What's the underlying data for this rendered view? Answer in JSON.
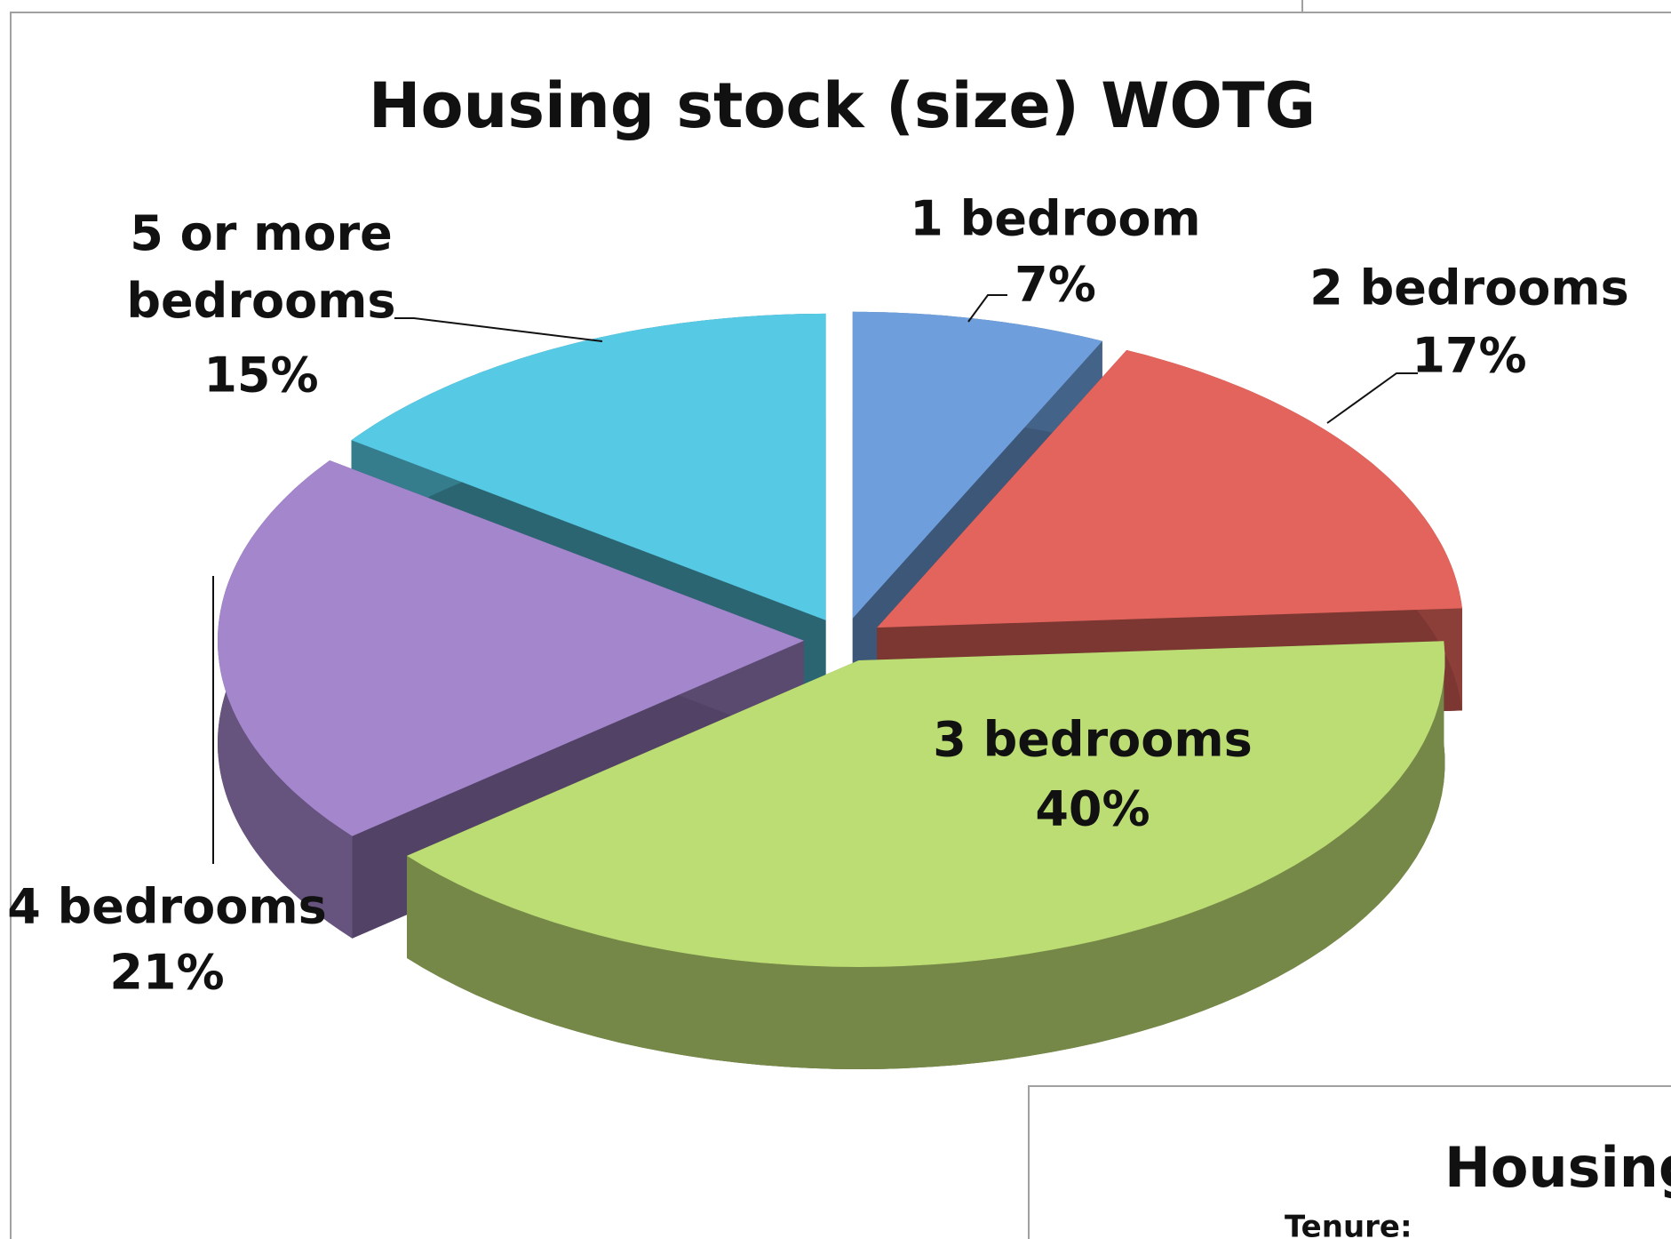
{
  "chart_data": {
    "type": "pie",
    "title": "Housing stock (size) WOTG",
    "categories": [
      "1 bedroom",
      "2 bedrooms",
      "3 bedrooms",
      "4 bedrooms",
      "5 or more bedrooms"
    ],
    "values": [
      7,
      17,
      40,
      21,
      15
    ],
    "value_labels": [
      "7%",
      "17%",
      "40%",
      "21%",
      "15%"
    ],
    "colors": [
      "#6e9fdc",
      "#e2645c",
      "#bcdc74",
      "#a486cc",
      "#56c9e4"
    ]
  },
  "background_chart": {
    "title": "Housing",
    "label": "Tenure:"
  }
}
